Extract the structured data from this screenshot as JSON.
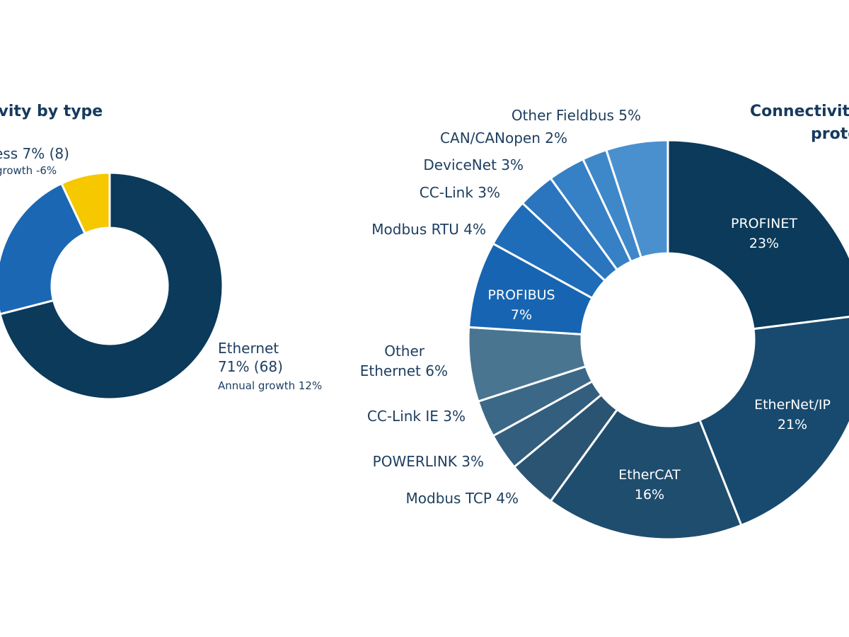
{
  "chart_data": [
    {
      "type": "pie",
      "title": "ivity by type",
      "slices": [
        {
          "label": "Ethernet",
          "value": 71,
          "count_text": "71% (68)",
          "growth_text": "Annual growth 12%",
          "color": "#0b3a5a"
        },
        {
          "label": "",
          "value": 22,
          "color": "#1b67b4"
        },
        {
          "label": "ess 7% (8)",
          "value": 7,
          "growth_text": "growth -6%",
          "color": "#f5c800"
        }
      ]
    },
    {
      "type": "pie",
      "title": [
        "Connectivity",
        "proto"
      ],
      "slices": [
        {
          "label": "PROFINET",
          "value_text": "23%",
          "value": 23,
          "color": "#0b3a5a"
        },
        {
          "label": "EtherNet/IP",
          "value_text": "21%",
          "value": 21,
          "color": "#174a6e"
        },
        {
          "label": "EtherCAT",
          "value_text": "16%",
          "value": 16,
          "color": "#1f4d6e"
        },
        {
          "label": "Modbus TCP 4%",
          "value": 4,
          "color": "#2b5473"
        },
        {
          "label": "POWERLINK 3%",
          "value": 3,
          "color": "#335e7d"
        },
        {
          "label": "CC-Link IE 3%",
          "value": 3,
          "color": "#3c6887"
        },
        {
          "label": "Other Ethernet 6%",
          "label_lines": [
            "Other",
            "Ethernet 6%"
          ],
          "value": 6,
          "color": "#4a7591"
        },
        {
          "label": "PROFIBUS",
          "value_text": "7%",
          "value": 7,
          "color": "#1765b2"
        },
        {
          "label": "Modbus RTU 4%",
          "value": 4,
          "color": "#1f6cb8"
        },
        {
          "label": "CC-Link 3%",
          "value": 3,
          "color": "#2b75bf"
        },
        {
          "label": "DeviceNet 3%",
          "value": 3,
          "color": "#3680c5"
        },
        {
          "label": "CAN/CANopen 2%",
          "value": 2,
          "color": "#3e87c9"
        },
        {
          "label": "Other Fieldbus 5%",
          "value": 5,
          "color": "#4a90cf"
        }
      ]
    }
  ]
}
